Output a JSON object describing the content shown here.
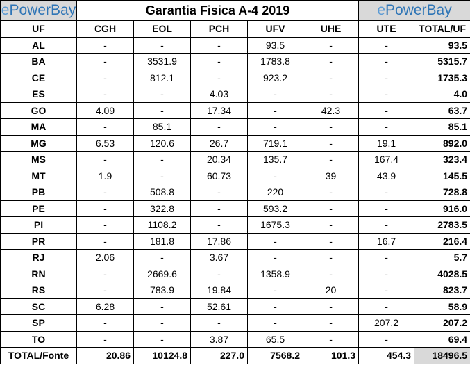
{
  "logo_left": {
    "prefix": "e",
    "rest": "PowerBay"
  },
  "logo_right": {
    "prefix": "e",
    "rest": "PowerBay"
  },
  "title": "Garantia Fisica A-4 2019",
  "headers": [
    "UF",
    "CGH",
    "EOL",
    "PCH",
    "UFV",
    "UHE",
    "UTE",
    "TOTAL/UF"
  ],
  "rows": [
    [
      "AL",
      "-",
      "-",
      "-",
      "93.5",
      "-",
      "-",
      "93.5"
    ],
    [
      "BA",
      "-",
      "3531.9",
      "-",
      "1783.8",
      "-",
      "-",
      "5315.7"
    ],
    [
      "CE",
      "-",
      "812.1",
      "-",
      "923.2",
      "-",
      "-",
      "1735.3"
    ],
    [
      "ES",
      "-",
      "-",
      "4.03",
      "-",
      "-",
      "-",
      "4.0"
    ],
    [
      "GO",
      "4.09",
      "-",
      "17.34",
      "-",
      "42.3",
      "-",
      "63.7"
    ],
    [
      "MA",
      "-",
      "85.1",
      "-",
      "-",
      "-",
      "-",
      "85.1"
    ],
    [
      "MG",
      "6.53",
      "120.6",
      "26.7",
      "719.1",
      "-",
      "19.1",
      "892.0"
    ],
    [
      "MS",
      "-",
      "-",
      "20.34",
      "135.7",
      "-",
      "167.4",
      "323.4"
    ],
    [
      "MT",
      "1.9",
      "-",
      "60.73",
      "-",
      "39",
      "43.9",
      "145.5"
    ],
    [
      "PB",
      "-",
      "508.8",
      "-",
      "220",
      "-",
      "-",
      "728.8"
    ],
    [
      "PE",
      "-",
      "322.8",
      "-",
      "593.2",
      "-",
      "-",
      "916.0"
    ],
    [
      "PI",
      "-",
      "1108.2",
      "-",
      "1675.3",
      "-",
      "-",
      "2783.5"
    ],
    [
      "PR",
      "-",
      "181.8",
      "17.86",
      "-",
      "-",
      "16.7",
      "216.4"
    ],
    [
      "RJ",
      "2.06",
      "-",
      "3.67",
      "-",
      "-",
      "-",
      "5.7"
    ],
    [
      "RN",
      "-",
      "2669.6",
      "-",
      "1358.9",
      "-",
      "-",
      "4028.5"
    ],
    [
      "RS",
      "-",
      "783.9",
      "19.84",
      "-",
      "20",
      "-",
      "823.7"
    ],
    [
      "SC",
      "6.28",
      "-",
      "52.61",
      "-",
      "-",
      "-",
      "58.9"
    ],
    [
      "SP",
      "-",
      "-",
      "-",
      "-",
      "-",
      "207.2",
      "207.2"
    ],
    [
      "TO",
      "-",
      "-",
      "3.87",
      "65.5",
      "-",
      "-",
      "69.4"
    ]
  ],
  "totals": [
    "TOTAL/Fonte",
    "20.86",
    "10124.8",
    "227.0",
    "7568.2",
    "101.3",
    "454.3",
    "18496.5"
  ]
}
